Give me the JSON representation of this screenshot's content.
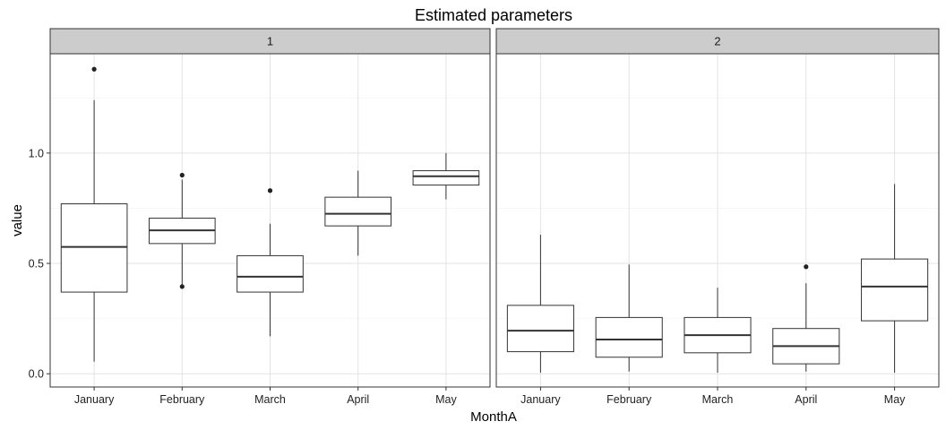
{
  "chart_data": {
    "type": "boxplot",
    "title": "Estimated parameters",
    "xlabel": "MonthA",
    "ylabel": "value",
    "categories": [
      "January",
      "February",
      "March",
      "April",
      "May"
    ],
    "ylim": [
      -0.06,
      1.45
    ],
    "yticks": [
      0.0,
      0.5,
      1.0
    ],
    "ytick_labels": [
      "0.0",
      "0.5",
      "1.0"
    ],
    "grid": true,
    "facets": [
      {
        "label": "1",
        "boxes": [
          {
            "category": "January",
            "min": 0.055,
            "q1": 0.37,
            "median": 0.575,
            "q3": 0.77,
            "max": 1.24,
            "outliers": [
              1.38
            ]
          },
          {
            "category": "February",
            "min": 0.4,
            "q1": 0.59,
            "median": 0.65,
            "q3": 0.705,
            "max": 0.88,
            "outliers": [
              0.9,
              0.395
            ]
          },
          {
            "category": "March",
            "min": 0.17,
            "q1": 0.37,
            "median": 0.44,
            "q3": 0.535,
            "max": 0.68,
            "outliers": [
              0.83
            ]
          },
          {
            "category": "April",
            "min": 0.535,
            "q1": 0.67,
            "median": 0.725,
            "q3": 0.8,
            "max": 0.92,
            "outliers": []
          },
          {
            "category": "May",
            "min": 0.79,
            "q1": 0.855,
            "median": 0.895,
            "q3": 0.92,
            "max": 1.0,
            "outliers": []
          }
        ]
      },
      {
        "label": "2",
        "boxes": [
          {
            "category": "January",
            "min": 0.005,
            "q1": 0.1,
            "median": 0.195,
            "q3": 0.31,
            "max": 0.63,
            "outliers": []
          },
          {
            "category": "February",
            "min": 0.01,
            "q1": 0.075,
            "median": 0.155,
            "q3": 0.255,
            "max": 0.495,
            "outliers": []
          },
          {
            "category": "March",
            "min": 0.005,
            "q1": 0.095,
            "median": 0.175,
            "q3": 0.255,
            "max": 0.39,
            "outliers": []
          },
          {
            "category": "April",
            "min": 0.01,
            "q1": 0.045,
            "median": 0.125,
            "q3": 0.205,
            "max": 0.41,
            "outliers": [
              0.485
            ]
          },
          {
            "category": "May",
            "min": 0.005,
            "q1": 0.24,
            "median": 0.395,
            "q3": 0.52,
            "max": 0.86,
            "outliers": []
          }
        ]
      }
    ],
    "colors": {
      "panel_border": "#333333",
      "strip_fill": "#cccccc",
      "grid_major": "#e3e3e3",
      "grid_minor": "#f2f2f2",
      "box_line": "#333333",
      "outlier": "#222222"
    }
  }
}
